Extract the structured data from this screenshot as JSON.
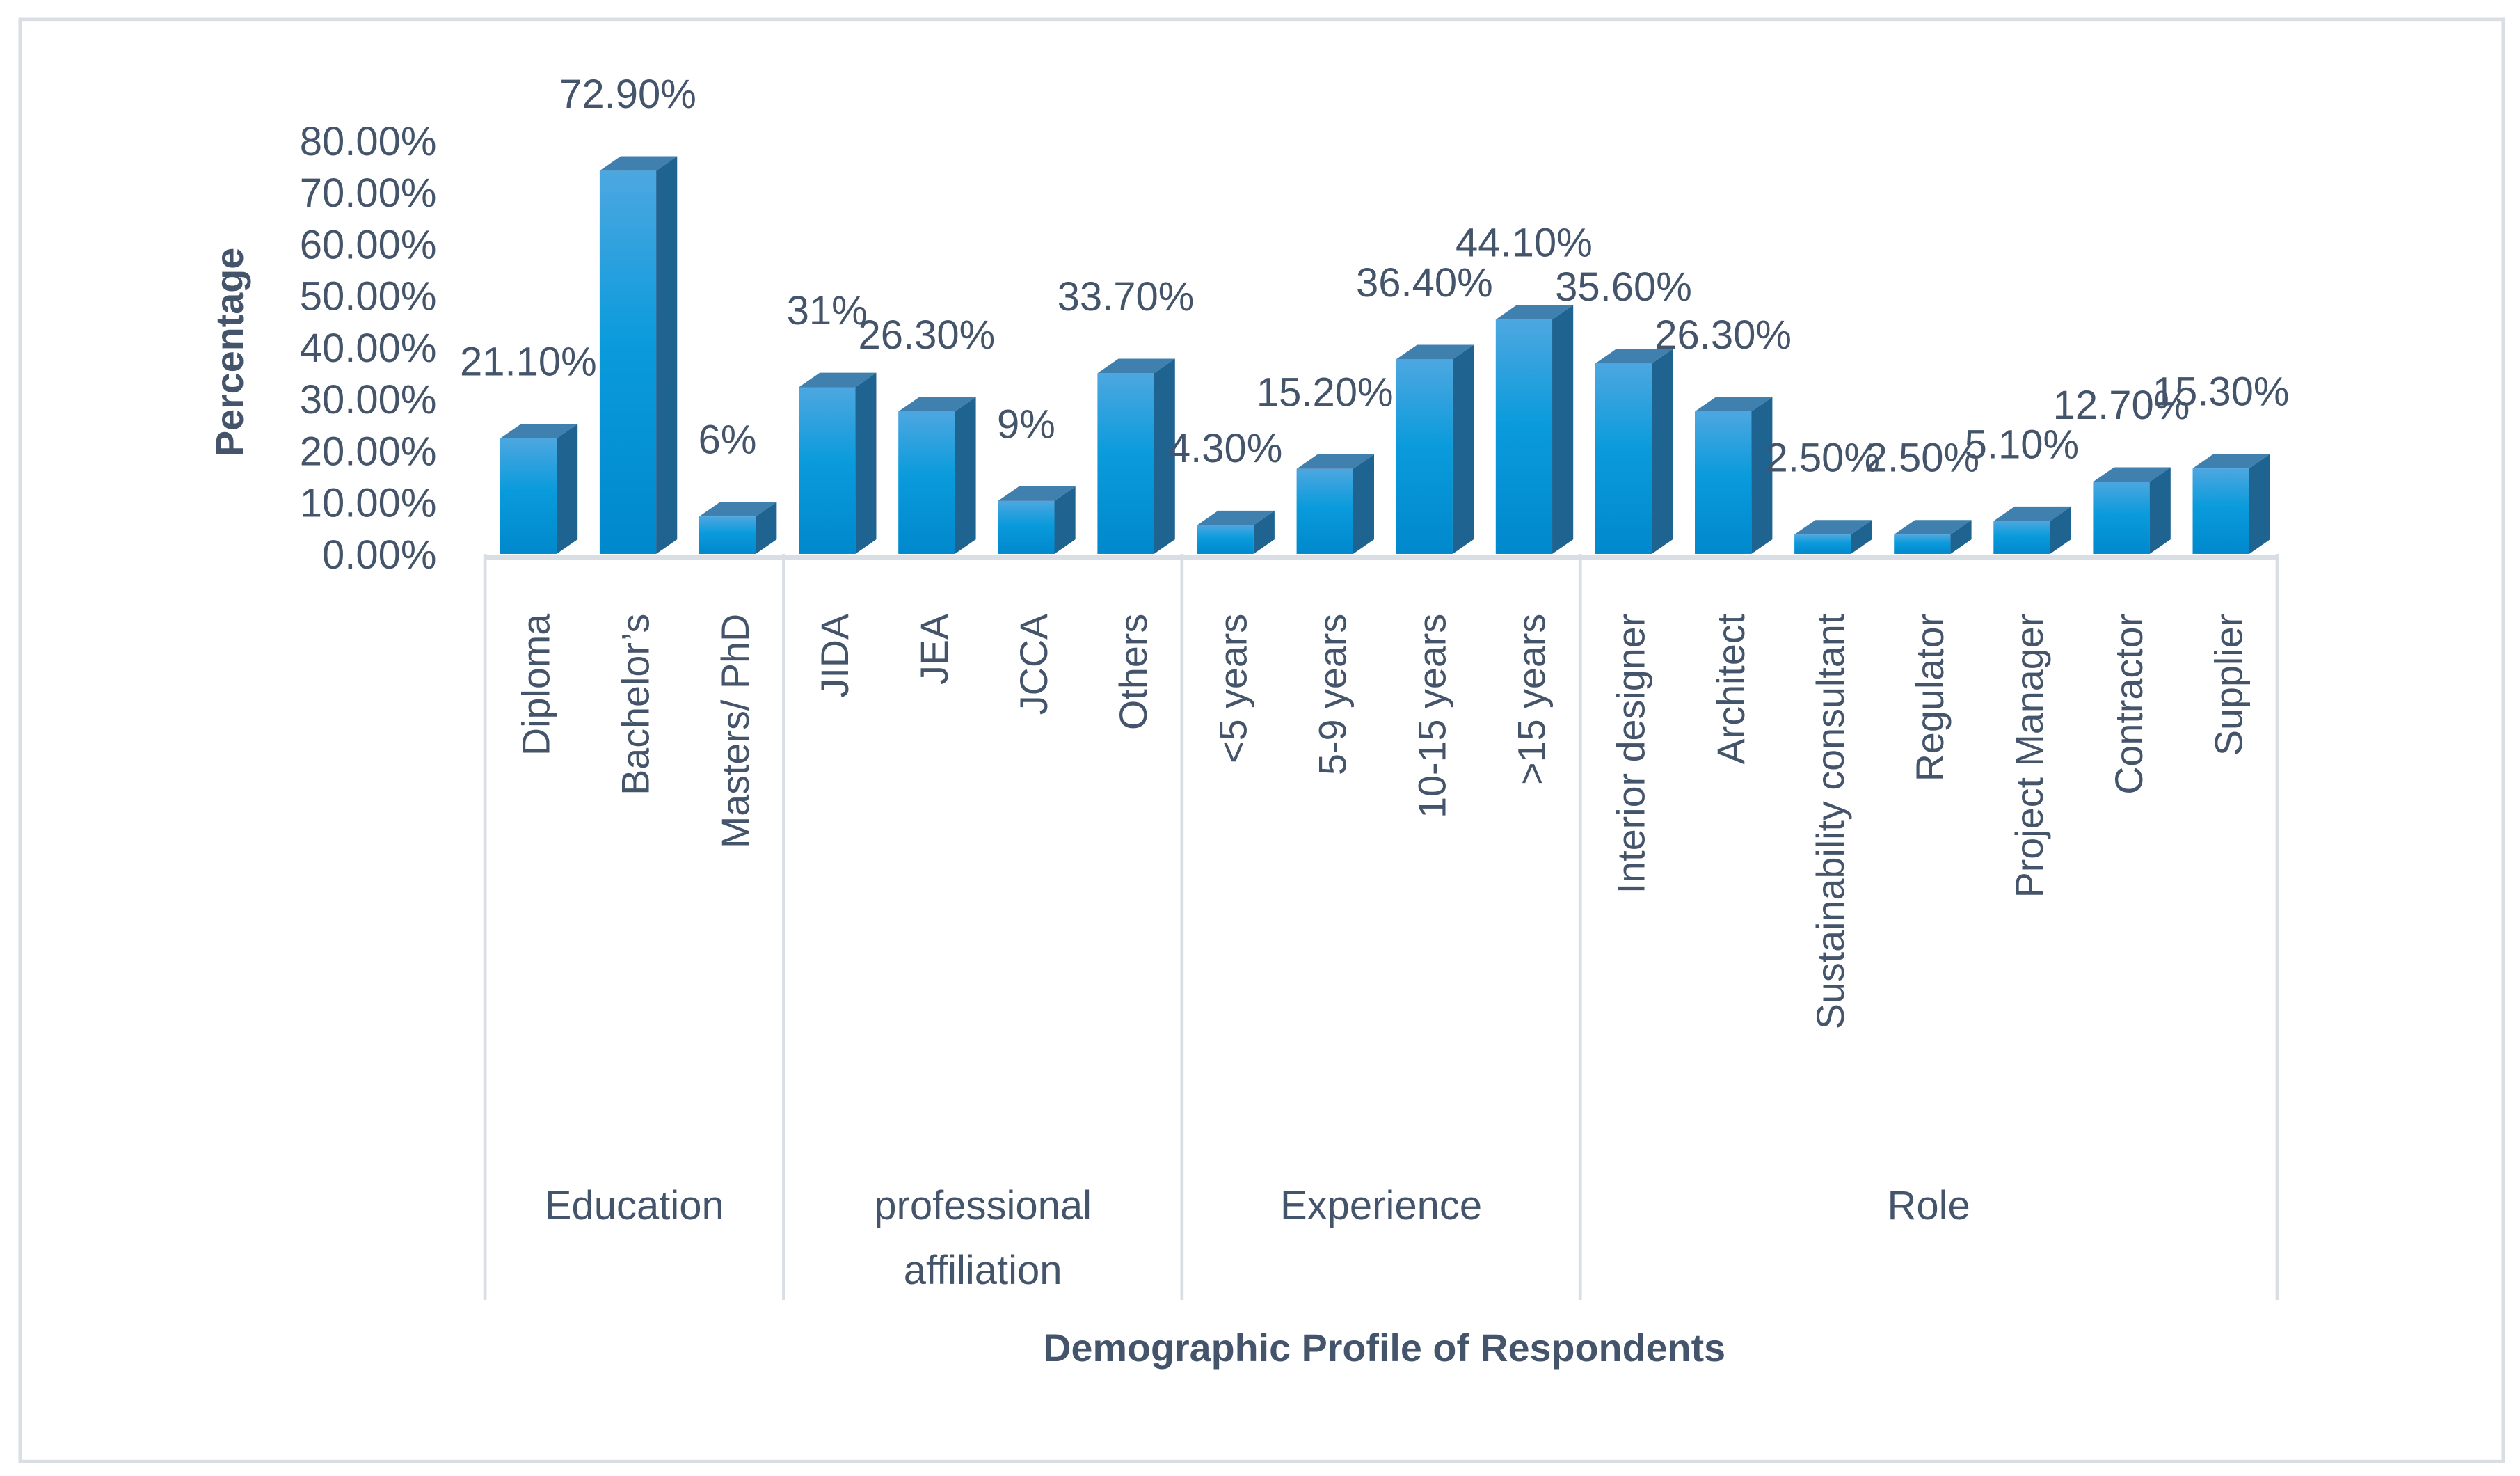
{
  "chart_data": {
    "type": "bar",
    "style": "3d-clustered-column",
    "title": "",
    "xlabel": "Demographic Profile of Respondents",
    "ylabel": "Percentage",
    "ylim": [
      0,
      80
    ],
    "ytick_step": 10,
    "yticks": [
      "0.00%",
      "10.00%",
      "20.00%",
      "30.00%",
      "40.00%",
      "50.00%",
      "60.00%",
      "70.00%",
      "80.00%"
    ],
    "grid": false,
    "legend": "none",
    "bar_color": "#0E9AD9",
    "groups": [
      {
        "label": [
          "Education"
        ],
        "categories": [
          "Diploma",
          "Bachelor’s",
          "Masters/ PhD"
        ],
        "values": [
          21.1,
          72.9,
          6
        ],
        "data_labels": [
          "21.10%",
          "72.90%",
          "6%"
        ]
      },
      {
        "label": [
          "professional",
          "affiliation"
        ],
        "categories": [
          "JIDA",
          "JEA",
          "JCCA",
          "Others"
        ],
        "values": [
          31,
          26.3,
          9,
          33.7
        ],
        "data_labels": [
          "31%",
          "26.30%",
          "9%",
          "33.70%"
        ]
      },
      {
        "label": [
          "Experience"
        ],
        "categories": [
          "<5 years",
          "5-9 years",
          "10-15 years",
          ">15 years"
        ],
        "values": [
          4.3,
          15.2,
          36.4,
          44.1
        ],
        "data_labels": [
          "4.30%",
          "15.20%",
          "36.40%",
          "44.10%"
        ]
      },
      {
        "label": [
          "Role"
        ],
        "categories": [
          "Interior designer",
          "Architect",
          "Sustainability consultant",
          "Regulator",
          "Project Manager",
          "Contractor",
          "Supplier"
        ],
        "values": [
          35.6,
          26.3,
          2.5,
          2.5,
          5.1,
          12.7,
          15.3
        ],
        "data_labels": [
          "35.60%",
          "26.30%",
          "2.50%",
          "2.50%",
          "5.10%",
          "12.70%",
          "15.30%"
        ]
      }
    ]
  }
}
